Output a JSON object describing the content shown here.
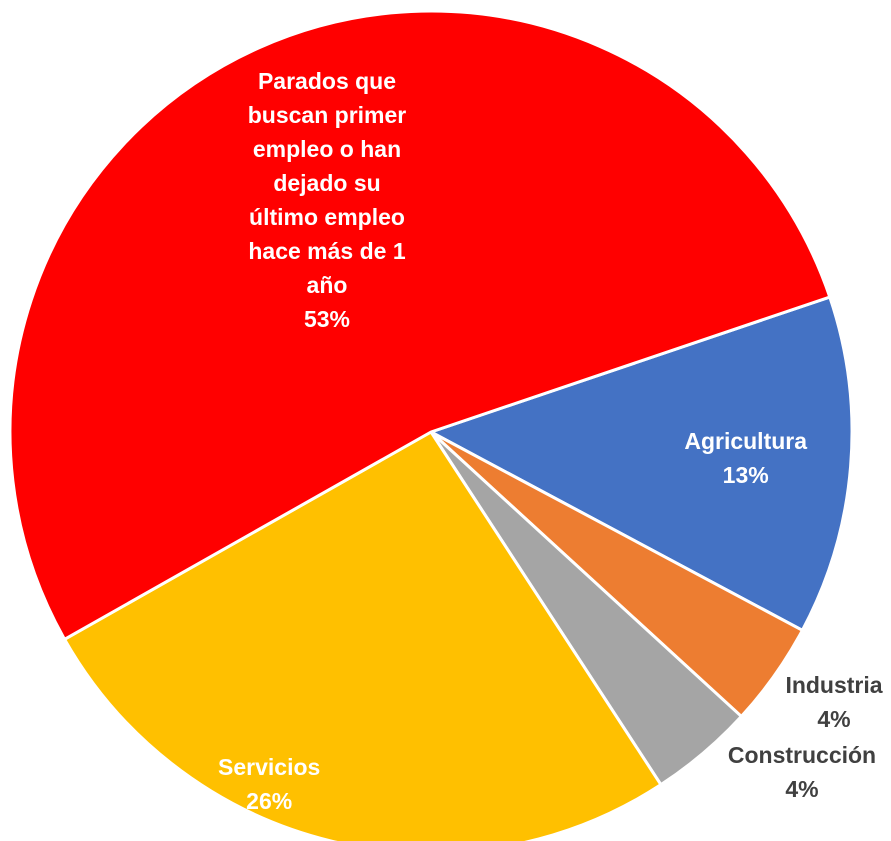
{
  "chart_data": {
    "type": "pie",
    "title": "",
    "slices": [
      {
        "name": "Agricultura",
        "value": 13,
        "label_lines": [
          "Agricultura",
          "13%"
        ],
        "color": "#4472C4",
        "label_color": "#FFFFFF"
      },
      {
        "name": "Industria",
        "value": 4,
        "label_lines": [
          "Industria",
          "4%"
        ],
        "color": "#ED7D31",
        "label_color": "#404040"
      },
      {
        "name": "Construcción",
        "value": 4,
        "label_lines": [
          "Construcción",
          "4%"
        ],
        "color": "#A5A5A5",
        "label_color": "#404040"
      },
      {
        "name": "Servicios",
        "value": 26,
        "label_lines": [
          "Servicios",
          "26%"
        ],
        "color": "#FFC000",
        "label_color": "#FFFFFF"
      },
      {
        "name": "Parados que buscan primer empleo o han dejado su último empleo hace más de 1 año",
        "value": 53,
        "label_lines": [
          "Parados que",
          "buscan primer",
          "empleo o han",
          "dejado su",
          "último empleo",
          "hace más de 1",
          "año",
          "53%"
        ],
        "color": "#FF0000",
        "label_color": "#FFFFFF"
      }
    ],
    "legend": "none"
  }
}
